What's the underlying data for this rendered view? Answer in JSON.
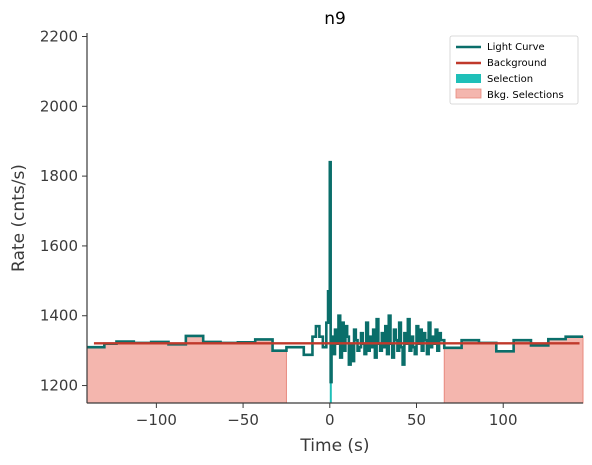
{
  "chart_data": {
    "type": "line",
    "title": "n9",
    "xlabel": "Time (s)",
    "ylabel": "Rate (cnts/s)",
    "xlim": [
      -140,
      146
    ],
    "ylim": [
      1150,
      2210
    ],
    "xticks": [
      -100,
      -50,
      0,
      50,
      100
    ],
    "yticks": [
      1200,
      1400,
      1600,
      1800,
      2000,
      2200
    ],
    "xtick_labels": [
      "−100",
      "−50",
      "0",
      "50",
      "100"
    ],
    "ytick_labels": [
      "1200",
      "1400",
      "1600",
      "1800",
      "2000",
      "2200"
    ],
    "legend_position": "top-right",
    "grid": false,
    "colors": {
      "light_curve": "#0a6e6a",
      "background": "#c0392b",
      "selection": "#1fbfb8",
      "bkg_selection_fill": "#f4b6ae",
      "bkg_selection_edge": "#e8897e",
      "axis": "#3a3a3a"
    },
    "series": [
      {
        "name": "Light Curve",
        "kind": "step",
        "x": [
          -140,
          -130,
          -123,
          -113,
          -103,
          -93,
          -83,
          -73,
          -63,
          -53,
          -43,
          -33,
          -25,
          -15,
          -10,
          -8,
          -6,
          -4,
          -2,
          -1,
          0,
          0.5,
          1,
          2,
          3,
          4,
          5,
          6,
          7,
          8,
          9,
          10,
          11,
          12,
          13,
          14,
          15,
          16,
          17,
          18,
          19,
          20,
          21,
          22,
          23,
          24,
          25,
          26,
          27,
          28,
          29,
          30,
          31,
          32,
          33,
          34,
          35,
          36,
          37,
          38,
          39,
          40,
          41,
          42,
          43,
          44,
          45,
          46,
          47,
          48,
          49,
          50,
          51,
          52,
          53,
          54,
          55,
          56,
          57,
          58,
          59,
          60,
          61,
          62,
          63,
          64,
          66,
          76,
          86,
          96,
          106,
          116,
          126,
          136,
          146
        ],
        "y": [
          1310,
          1320,
          1326,
          1322,
          1325,
          1318,
          1342,
          1325,
          1322,
          1324,
          1332,
          1300,
          1310,
          1288,
          1340,
          1370,
          1340,
          1310,
          1380,
          1470,
          1840,
          1210,
          1340,
          1290,
          1360,
          1320,
          1400,
          1280,
          1380,
          1300,
          1370,
          1340,
          1260,
          1320,
          1270,
          1360,
          1330,
          1300,
          1310,
          1350,
          1320,
          1290,
          1380,
          1300,
          1340,
          1310,
          1360,
          1280,
          1390,
          1320,
          1300,
          1350,
          1310,
          1370,
          1290,
          1400,
          1320,
          1280,
          1360,
          1330,
          1300,
          1380,
          1310,
          1260,
          1350,
          1320,
          1390,
          1300,
          1340,
          1310,
          1290,
          1370,
          1320,
          1360,
          1300,
          1350,
          1330,
          1290,
          1380,
          1310,
          1340,
          1320,
          1360,
          1300,
          1350,
          1330,
          1308,
          1330,
          1322,
          1298,
          1330,
          1315,
          1333,
          1340,
          1285
        ]
      },
      {
        "name": "Background",
        "kind": "line",
        "x": [
          -136,
          144
        ],
        "y": [
          1321,
          1321
        ]
      }
    ],
    "selection": {
      "name": "Selection",
      "x_start": 0,
      "x_end": 1,
      "range": [
        1150,
        1210
      ]
    },
    "bkg_selections": {
      "name": "Bkg. Selections",
      "intervals": [
        {
          "x_start": -140,
          "x_end": -25,
          "steps_x": [
            -140,
            -130,
            -123,
            -113,
            -103,
            -93,
            -83,
            -73,
            -63,
            -53,
            -43,
            -33,
            -25
          ],
          "steps_y": [
            1310,
            1320,
            1326,
            1322,
            1325,
            1318,
            1342,
            1325,
            1322,
            1324,
            1332,
            1300,
            1300
          ]
        },
        {
          "x_start": 66,
          "x_end": 146,
          "steps_x": [
            66,
            76,
            86,
            96,
            106,
            116,
            126,
            136,
            146
          ],
          "steps_y": [
            1308,
            1330,
            1322,
            1298,
            1330,
            1315,
            1333,
            1340,
            1285
          ]
        }
      ]
    }
  }
}
